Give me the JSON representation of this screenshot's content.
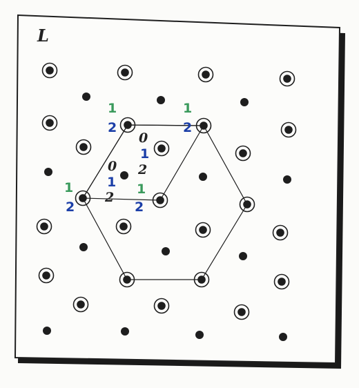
{
  "panel": {
    "title": "L"
  },
  "colors": {
    "ink": "#1e1e1e",
    "panel_bg": "#fcfcfa",
    "shadow": "#1a1a1a",
    "green": "#3a9a5c",
    "blue": "#1c3fa8",
    "dark": "#222222"
  },
  "labels": {
    "label_1_a": "1",
    "label_2_a": "2",
    "label_1_b": "1",
    "label_2_b": "2",
    "label_1_c": "1",
    "label_2_c": "2",
    "label_1_d": "1",
    "label_2_d": "2",
    "stack_a_0": "0",
    "stack_a_1": "1",
    "stack_a_2": "2",
    "stack_b_0": "0",
    "stack_b_1": "1",
    "stack_b_2": "2"
  }
}
